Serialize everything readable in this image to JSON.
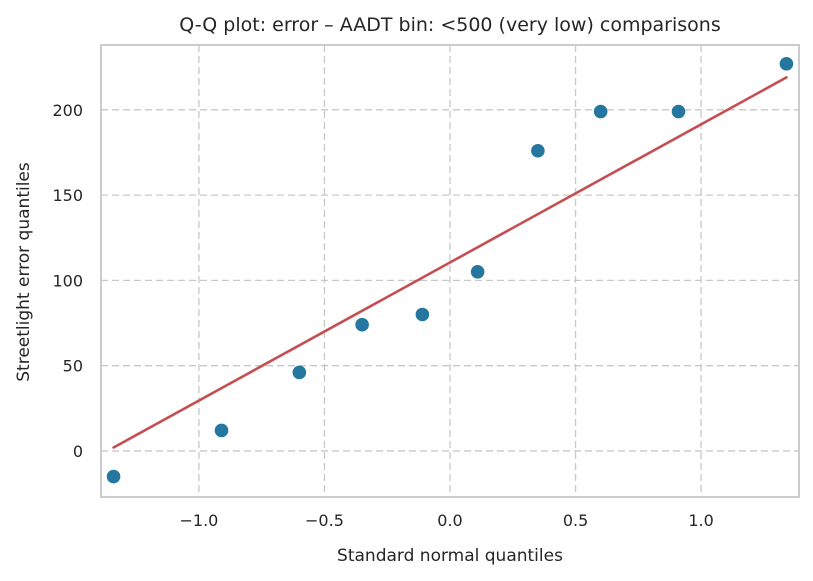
{
  "chart_data": {
    "type": "scatter",
    "title": "Q-Q plot: error – AADT bin: <500 (very low) comparisons",
    "xlabel": "Standard normal quantiles",
    "ylabel": "Streetlight error quantiles",
    "xlim": [
      -1.39,
      1.39
    ],
    "ylim": [
      -27,
      238
    ],
    "xticks": [
      -1.0,
      -0.5,
      0.0,
      0.5,
      1.0
    ],
    "xtick_labels": [
      "−1.0",
      "−0.5",
      "0.0",
      "0.5",
      "1.0"
    ],
    "yticks": [
      0,
      50,
      100,
      150,
      200
    ],
    "ytick_labels": [
      "0",
      "50",
      "100",
      "150",
      "200"
    ],
    "grid": true,
    "points": {
      "x": [
        -1.34,
        -0.91,
        -0.6,
        -0.35,
        -0.11,
        0.11,
        0.35,
        0.6,
        0.91,
        1.34
      ],
      "y": [
        -15,
        12,
        46,
        74,
        80,
        105,
        176,
        199,
        199,
        227
      ],
      "color": "#2577a0"
    },
    "fit_line": {
      "x": [
        -1.34,
        1.34
      ],
      "y": [
        2,
        219
      ],
      "color": "#c44e52"
    }
  }
}
